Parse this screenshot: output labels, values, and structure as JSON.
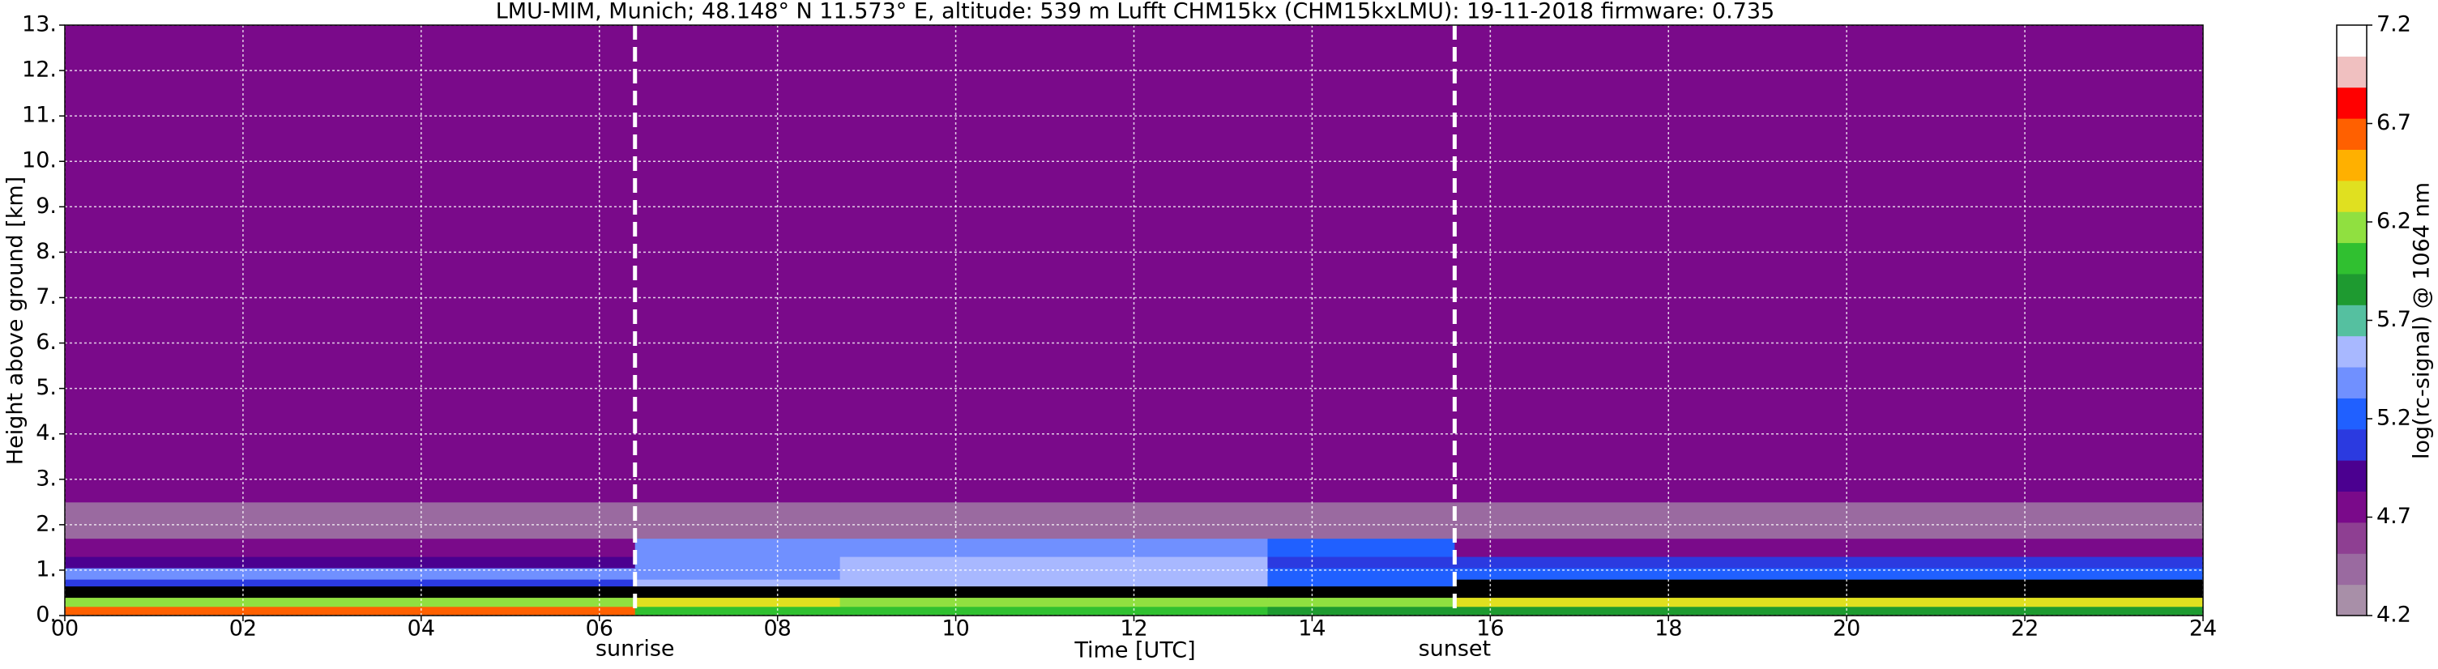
{
  "chart_data": {
    "type": "heatmap",
    "title": "LMU-MIM, Munich; 48.148° N 11.573° E, altitude: 539 m    Lufft CHM15kx (CHM15kxLMU): 19-11-2018    firmware: 0.735",
    "x_label": "Time [UTC]",
    "y_label": "Height above ground [km]",
    "colorbar_label": "log(rc-signal) @ 1064 nm",
    "xlim": [
      0,
      24
    ],
    "xticks": [
      {
        "value": 0,
        "label": "00"
      },
      {
        "value": 2,
        "label": "02"
      },
      {
        "value": 4,
        "label": "04"
      },
      {
        "value": 6,
        "label": "06"
      },
      {
        "value": 8,
        "label": "08"
      },
      10,
      12,
      14,
      16,
      18,
      20,
      22,
      24
    ],
    "ylim": [
      0,
      13
    ],
    "yticks": [
      {
        "value": 0,
        "label": "0."
      },
      {
        "value": 1,
        "label": "1."
      },
      {
        "value": 2,
        "label": "2."
      },
      {
        "value": 3,
        "label": "3."
      },
      {
        "value": 4,
        "label": "4."
      },
      {
        "value": 5,
        "label": "5."
      },
      {
        "value": 6,
        "label": "6."
      },
      {
        "value": 7,
        "label": "7."
      },
      {
        "value": 8,
        "label": "8."
      },
      {
        "value": 9,
        "label": "9."
      },
      {
        "value": 10,
        "label": "10."
      },
      {
        "value": 11,
        "label": "11."
      },
      {
        "value": 12,
        "label": "12."
      },
      {
        "value": 13,
        "label": "13."
      }
    ],
    "zlim": [
      4.2,
      7.2
    ],
    "zticks": [
      4.2,
      4.7,
      5.2,
      5.7,
      6.2,
      6.7,
      7.2
    ],
    "colormap": [
      "#a88fa8",
      "#9a6aa0",
      "#8e3f92",
      "#7a0a8a",
      "#4b0090",
      "#2b3ae0",
      "#2060ff",
      "#7090ff",
      "#a8b8ff",
      "#55c0a0",
      "#1e9a30",
      "#30c030",
      "#90e040",
      "#e0e020",
      "#ffb000",
      "#ff6000",
      "#ff0000",
      "#f0c0c0",
      "#ffffff"
    ],
    "under_color": "#000000",
    "grid": true,
    "xbins": [
      0,
      6.4,
      8.7,
      13.5,
      15.6,
      24
    ],
    "ybins": [
      0,
      0.2,
      0.4,
      0.65,
      0.8,
      1.05,
      1.3,
      1.7,
      2.5,
      13
    ],
    "z": [
      [
        6.6,
        6.0,
        6.0,
        5.9,
        5.9
      ],
      [
        6.2,
        6.3,
        6.2,
        6.1,
        6.4
      ],
      [
        4.0,
        4.0,
        4.0,
        4.0,
        4.0
      ],
      [
        5.0,
        5.6,
        5.6,
        5.3,
        4.0
      ],
      [
        5.4,
        5.4,
        5.6,
        5.3,
        5.3
      ],
      [
        4.9,
        5.4,
        5.6,
        5.1,
        5.0
      ],
      [
        4.7,
        5.4,
        5.4,
        5.2,
        4.7
      ],
      [
        4.5,
        4.5,
        4.5,
        4.5,
        4.5
      ],
      [
        4.7,
        4.7,
        4.7,
        4.7,
        4.7
      ]
    ],
    "annotations": [
      {
        "x": 6.4,
        "label": "sunrise"
      },
      {
        "x": 15.6,
        "label": "sunset"
      }
    ]
  }
}
